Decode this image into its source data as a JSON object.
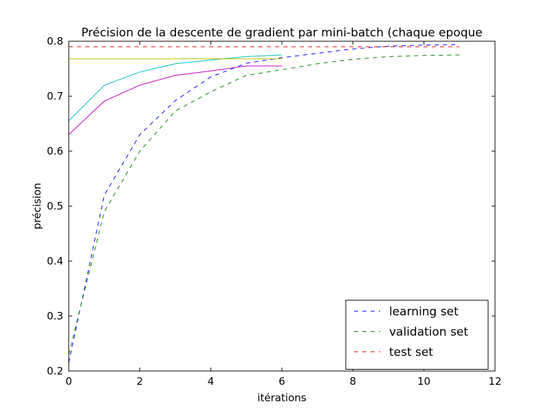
{
  "chart_data": {
    "type": "line",
    "title": "Précision de la descente de gradient par mini-batch (chaque epoque",
    "xlabel": "itérations",
    "ylabel": "précision",
    "xlim": [
      0,
      12
    ],
    "ylim": [
      0.2,
      0.8
    ],
    "xticks": [
      "0",
      "2",
      "4",
      "6",
      "8",
      "10",
      "12"
    ],
    "yticks": [
      "0.2",
      "0.3",
      "0.4",
      "0.5",
      "0.6",
      "0.7",
      "0.8"
    ],
    "grid": false,
    "legend_placement": "lower-right",
    "series": [
      {
        "name": "learning set",
        "color": "#0000ff",
        "dashed": true,
        "x": [
          0,
          1,
          2,
          3,
          4,
          5,
          6,
          7,
          8,
          9,
          10,
          11
        ],
        "y": [
          0.215,
          0.52,
          0.63,
          0.692,
          0.735,
          0.76,
          0.77,
          0.778,
          0.786,
          0.791,
          0.793,
          0.794
        ]
      },
      {
        "name": "validation set",
        "color": "#008000",
        "dashed": true,
        "x": [
          0,
          1,
          2,
          3,
          4,
          5,
          6,
          7,
          8,
          9,
          10,
          11
        ],
        "y": [
          0.23,
          0.49,
          0.6,
          0.673,
          0.708,
          0.738,
          0.748,
          0.759,
          0.767,
          0.772,
          0.774,
          0.775
        ]
      },
      {
        "name": "test set",
        "color": "#ff0000",
        "dashed": true,
        "x": [
          0,
          11
        ],
        "y": [
          0.79,
          0.79
        ]
      },
      {
        "color": "#00bfbf",
        "dashed": false,
        "x": [
          0,
          1,
          2,
          3,
          4,
          5,
          6
        ],
        "y": [
          0.655,
          0.72,
          0.744,
          0.759,
          0.766,
          0.772,
          0.775
        ]
      },
      {
        "color": "#bf00bf",
        "dashed": false,
        "x": [
          0,
          1,
          2,
          3,
          4,
          5,
          6
        ],
        "y": [
          0.63,
          0.691,
          0.72,
          0.738,
          0.746,
          0.755,
          0.755
        ]
      },
      {
        "color": "#bfbf00",
        "dashed": false,
        "x": [
          0,
          6
        ],
        "y": [
          0.768,
          0.768
        ]
      }
    ]
  }
}
